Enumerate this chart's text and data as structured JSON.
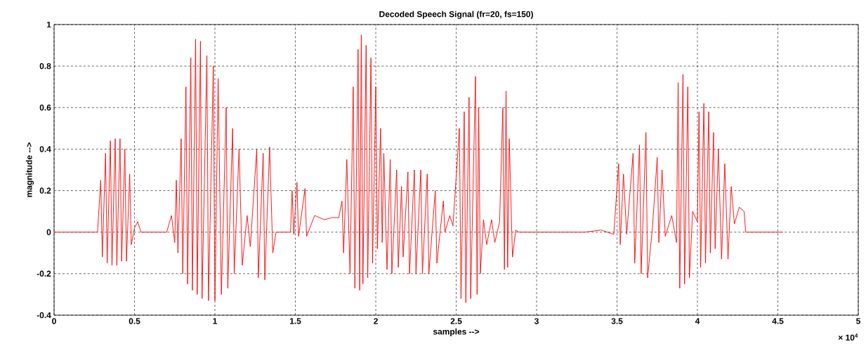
{
  "chart_data": {
    "type": "line",
    "title": "Decoded Speech Signal (fr=20, fs=150)",
    "xlabel": "samples -->",
    "ylabel": "magnitude -->",
    "annotations": [
      "× 10$^{4}$"
    ],
    "xlim": [
      0,
      5
    ],
    "ylim": [
      -0.4,
      1
    ],
    "xticks": [
      0,
      0.5,
      1,
      1.5,
      2,
      2.5,
      3,
      3.5,
      4,
      4.5,
      5
    ],
    "yticks": [
      -0.4,
      -0.2,
      0,
      0.2,
      0.4,
      0.6,
      0.8,
      1
    ],
    "grid": true,
    "color": "#ff0000",
    "marker": "none",
    "x": [
      0,
      0.27,
      0.29,
      0.3,
      0.32,
      0.33,
      0.35,
      0.36,
      0.38,
      0.39,
      0.41,
      0.42,
      0.44,
      0.45,
      0.47,
      0.48,
      0.5,
      0.52,
      0.54,
      0.7,
      0.73,
      0.75,
      0.76,
      0.77,
      0.79,
      0.8,
      0.82,
      0.83,
      0.85,
      0.86,
      0.88,
      0.89,
      0.91,
      0.92,
      0.95,
      0.96,
      0.99,
      1.0,
      1.02,
      1.04,
      1.07,
      1.08,
      1.11,
      1.12,
      1.15,
      1.17,
      1.2,
      1.22,
      1.26,
      1.27,
      1.3,
      1.31,
      1.34,
      1.36,
      1.38,
      1.47,
      1.48,
      1.49,
      1.51,
      1.52,
      1.56,
      1.57,
      1.62,
      1.68,
      1.73,
      1.77,
      1.79,
      1.8,
      1.82,
      1.84,
      1.86,
      1.87,
      1.89,
      1.9,
      1.91,
      1.92,
      1.94,
      1.95,
      1.97,
      1.98,
      2.0,
      2.01,
      2.03,
      2.04,
      2.05,
      2.07,
      2.09,
      2.1,
      2.13,
      2.14,
      2.16,
      2.17,
      2.2,
      2.21,
      2.24,
      2.25,
      2.28,
      2.29,
      2.32,
      2.33,
      2.37,
      2.38,
      2.42,
      2.43,
      2.46,
      2.48,
      2.52,
      2.53,
      2.55,
      2.56,
      2.58,
      2.59,
      2.62,
      2.63,
      2.64,
      2.65,
      2.67,
      2.69,
      2.72,
      2.74,
      2.77,
      2.79,
      2.8,
      2.81,
      2.82,
      2.83,
      2.85,
      2.87,
      2.89,
      3.3,
      3.4,
      3.48,
      3.51,
      3.52,
      3.54,
      3.56,
      3.6,
      3.61,
      3.64,
      3.65,
      3.68,
      3.69,
      3.72,
      3.75,
      3.76,
      3.78,
      3.8,
      3.84,
      3.87,
      3.88,
      3.89,
      3.91,
      3.92,
      3.94,
      3.95,
      3.97,
      4.0,
      4.01,
      4.02,
      4.04,
      4.05,
      4.07,
      4.08,
      4.1,
      4.11,
      4.13,
      4.15,
      4.17,
      4.19,
      4.21,
      4.23,
      4.26,
      4.29,
      4.3,
      4.53
    ],
    "values": [
      0,
      0,
      0.25,
      -0.12,
      0.38,
      -0.15,
      0.44,
      -0.16,
      0.45,
      -0.16,
      0.45,
      -0.14,
      0.4,
      -0.14,
      0.28,
      -0.06,
      0.02,
      0.05,
      0,
      0,
      0.08,
      -0.05,
      0.25,
      -0.1,
      0.45,
      -0.2,
      0.7,
      -0.25,
      0.84,
      -0.28,
      0.93,
      -0.3,
      0.92,
      -0.32,
      0.85,
      -0.33,
      0.8,
      -0.33,
      0.74,
      -0.3,
      0.6,
      -0.27,
      0.5,
      -0.2,
      0.4,
      -0.16,
      0.08,
      -0.07,
      0.4,
      -0.22,
      0.38,
      -0.23,
      0.41,
      -0.1,
      0,
      0,
      0.2,
      -0.01,
      0.24,
      -0.02,
      0.21,
      -0.02,
      0.08,
      0.06,
      0.07,
      0.07,
      0.15,
      -0.1,
      0.35,
      -0.2,
      0.7,
      -0.27,
      0.88,
      -0.28,
      0.95,
      -0.25,
      0.9,
      -0.22,
      0.84,
      -0.15,
      0.7,
      -0.08,
      0.5,
      -0.05,
      0.38,
      -0.18,
      0.35,
      -0.2,
      0.3,
      -0.17,
      0.22,
      -0.12,
      0.29,
      -0.2,
      0.3,
      -0.2,
      0.3,
      -0.2,
      0.28,
      -0.2,
      0.2,
      -0.15,
      0.15,
      0,
      0.08,
      0.03,
      0.5,
      -0.32,
      0.58,
      -0.34,
      0.65,
      -0.32,
      0.75,
      -0.3,
      0.6,
      -0.2,
      0.06,
      -0.06,
      0.06,
      -0.05,
      0.05,
      0.6,
      -0.18,
      0.68,
      -0.17,
      0.45,
      -0.12,
      0.01,
      0,
      0,
      0.01,
      -0.01,
      0.33,
      -0.06,
      0.28,
      -0.01,
      0.38,
      -0.15,
      0.42,
      -0.2,
      0.48,
      -0.22,
      0.02,
      0.36,
      -0.05,
      0.3,
      -0.02,
      0.08,
      -0.05,
      0.72,
      -0.27,
      0.76,
      -0.25,
      0.7,
      -0.22,
      0.1,
      0.05,
      0.58,
      -0.17,
      0.62,
      -0.15,
      0.58,
      -0.1,
      0.48,
      -0.08,
      0.4,
      -0.13,
      0.33,
      -0.13,
      0.22,
      0.04,
      0.12,
      0.1,
      0,
      0
    ]
  }
}
